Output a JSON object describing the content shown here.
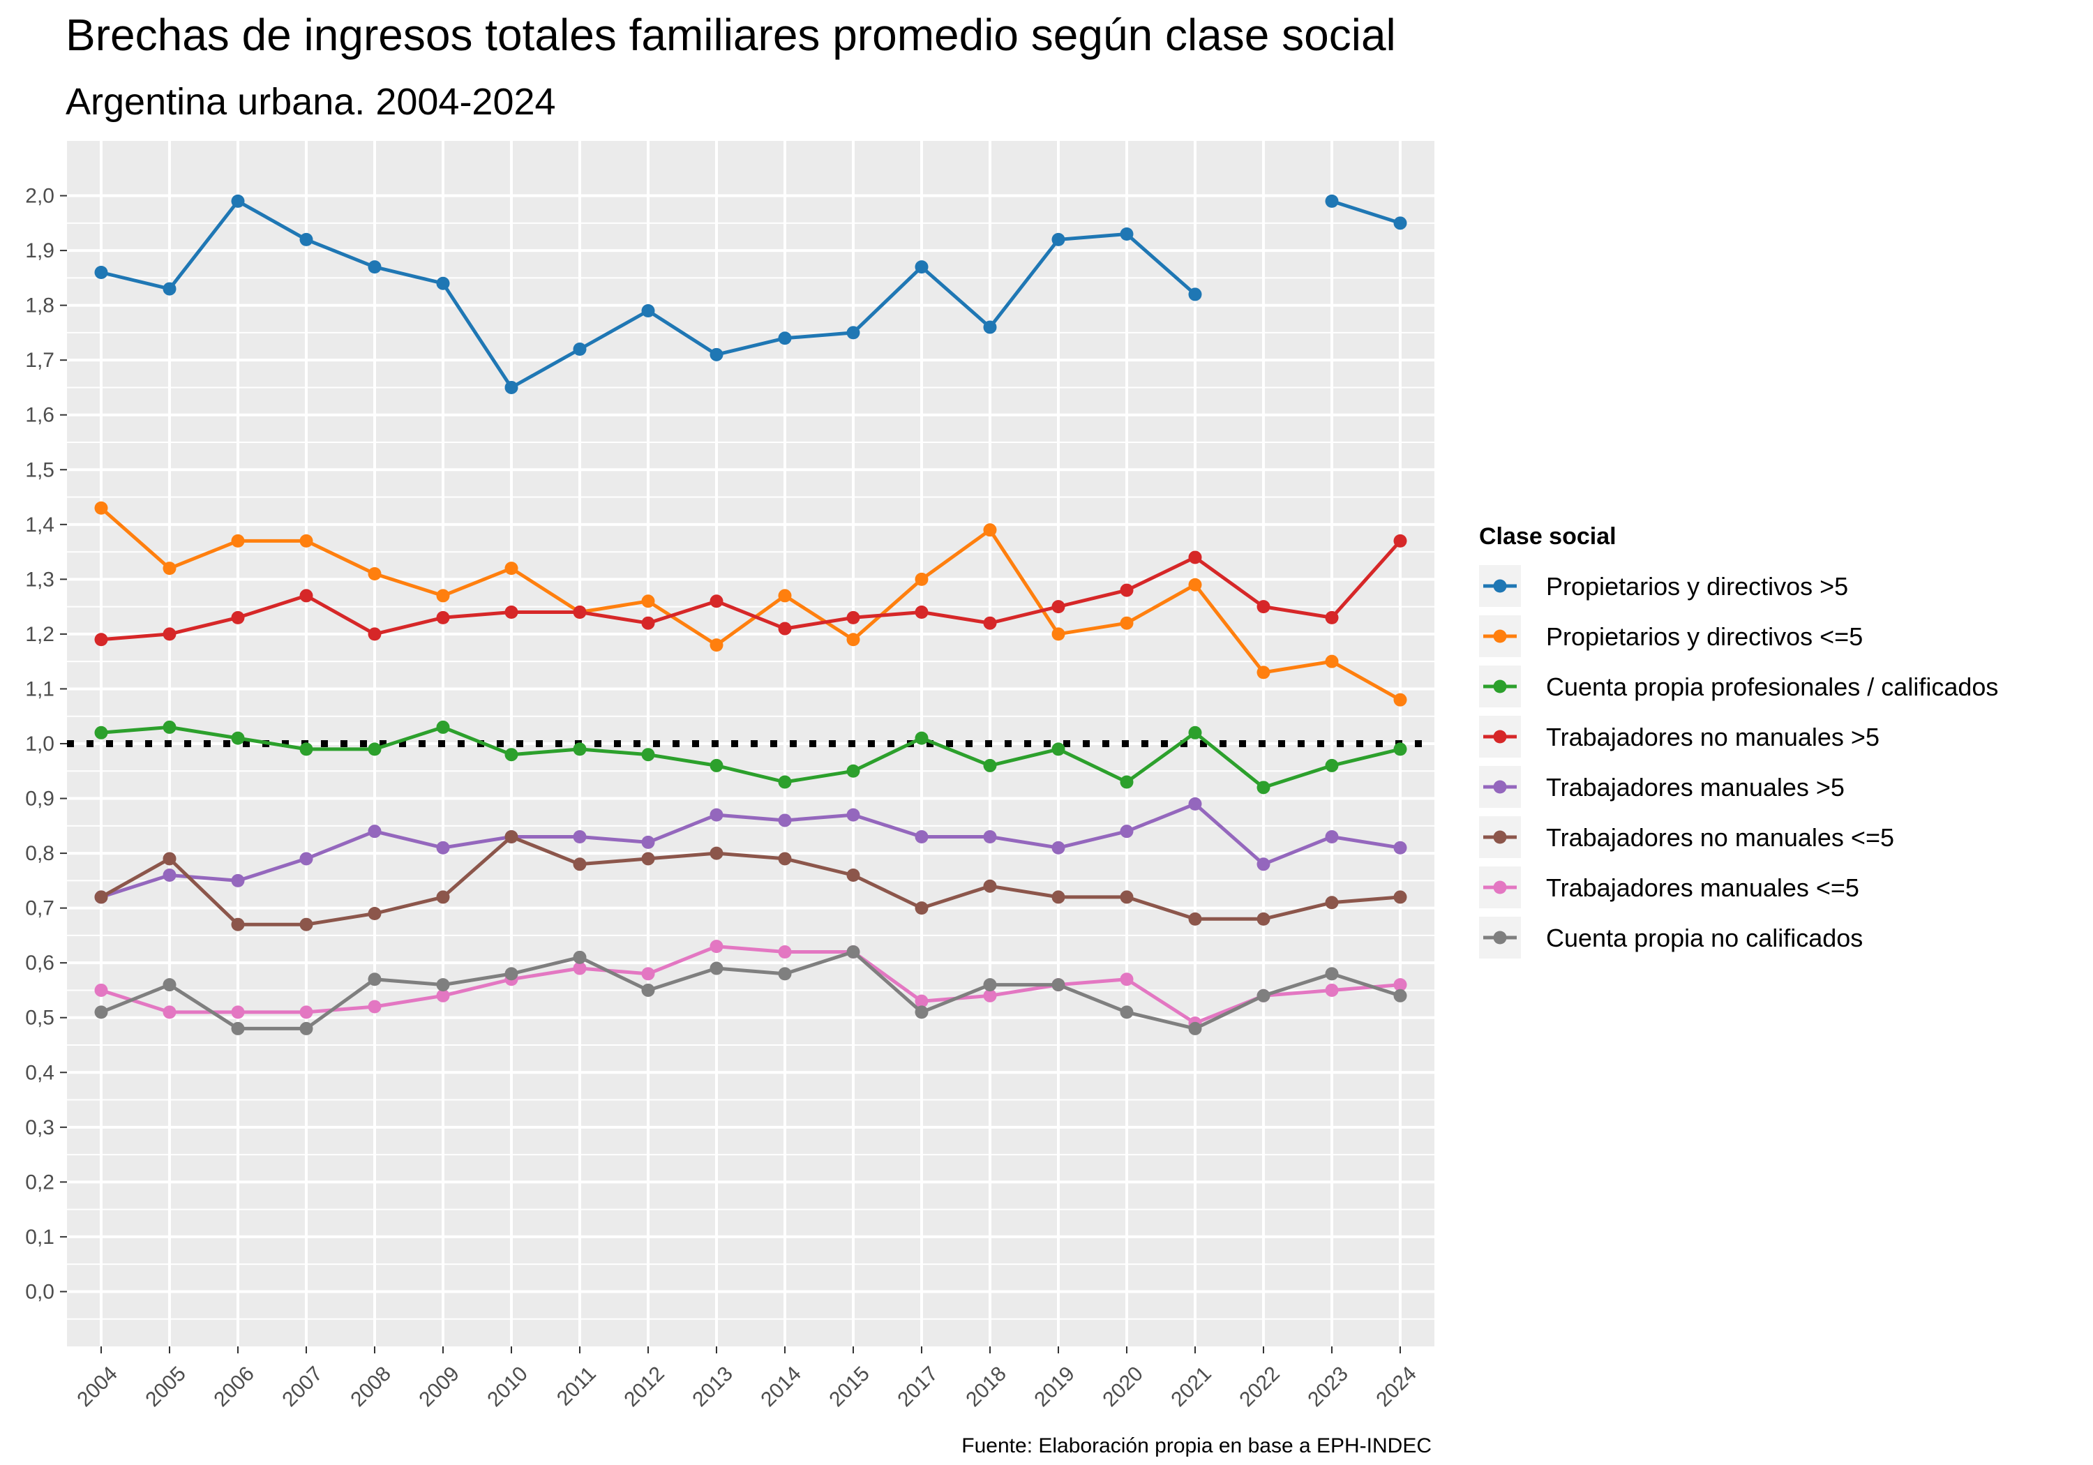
{
  "chart_data": {
    "type": "line",
    "title": "Brechas de ingresos totales familiares promedio según clase social",
    "subtitle": "Argentina urbana. 2004-2024",
    "caption": "Fuente: Elaboración propia en base a EPH-INDEC",
    "xlabel": "",
    "ylabel": "",
    "x": [
      "2004",
      "2005",
      "2006",
      "2007",
      "2008",
      "2009",
      "2010",
      "2011",
      "2012",
      "2013",
      "2014",
      "2015",
      "2017",
      "2018",
      "2019",
      "2020",
      "2021",
      "2022",
      "2023",
      "2024"
    ],
    "y_ticks": [
      "0,0",
      "0,1",
      "0,2",
      "0,3",
      "0,4",
      "0,5",
      "0,6",
      "0,7",
      "0,8",
      "0,9",
      "1,0",
      "1,1",
      "1,2",
      "1,3",
      "1,4",
      "1,5",
      "1,6",
      "1,7",
      "1,8",
      "1,9",
      "2,0"
    ],
    "ylim": [
      -0.1,
      2.1
    ],
    "reference_line": 1.0,
    "grid": true,
    "legend": {
      "title": "Clase social",
      "position": "right"
    },
    "series": [
      {
        "name": "Propietarios y directivos >5",
        "color": "#1f77b4",
        "values": [
          1.86,
          1.83,
          1.99,
          1.92,
          1.87,
          1.84,
          1.65,
          1.72,
          1.79,
          1.71,
          1.74,
          1.75,
          1.87,
          1.76,
          1.92,
          1.93,
          1.82,
          null,
          1.99,
          1.95
        ]
      },
      {
        "name": "Propietarios y directivos <=5",
        "color": "#ff7f0e",
        "values": [
          1.43,
          1.32,
          1.37,
          1.37,
          1.31,
          1.27,
          1.32,
          1.24,
          1.26,
          1.18,
          1.27,
          1.19,
          1.3,
          1.39,
          1.2,
          1.22,
          1.29,
          1.13,
          1.15,
          1.08
        ]
      },
      {
        "name": "Cuenta propia profesionales / calificados",
        "color": "#2ca02c",
        "values": [
          1.02,
          1.03,
          1.01,
          0.99,
          0.99,
          1.03,
          0.98,
          0.99,
          0.98,
          0.96,
          0.93,
          0.95,
          1.01,
          0.96,
          0.99,
          0.93,
          1.02,
          0.92,
          0.96,
          0.99
        ]
      },
      {
        "name": "Trabajadores no manuales >5",
        "color": "#d62728",
        "values": [
          1.19,
          1.2,
          1.23,
          1.27,
          1.2,
          1.23,
          1.24,
          1.24,
          1.22,
          1.26,
          1.21,
          1.23,
          1.24,
          1.22,
          1.25,
          1.28,
          1.34,
          1.25,
          1.23,
          1.37
        ]
      },
      {
        "name": "Trabajadores manuales >5",
        "color": "#9467bd",
        "values": [
          0.72,
          0.76,
          0.75,
          0.79,
          0.84,
          0.81,
          0.83,
          0.83,
          0.82,
          0.87,
          0.86,
          0.87,
          0.83,
          0.83,
          0.81,
          0.84,
          0.89,
          0.78,
          0.83,
          0.81
        ]
      },
      {
        "name": "Trabajadores no manuales <=5",
        "color": "#8c564b",
        "values": [
          0.72,
          0.79,
          0.67,
          0.67,
          0.69,
          0.72,
          0.83,
          0.78,
          0.79,
          0.8,
          0.79,
          0.76,
          0.7,
          0.74,
          0.72,
          0.72,
          0.68,
          0.68,
          0.71,
          0.72
        ]
      },
      {
        "name": "Trabajadores manuales <=5",
        "color": "#e377c2",
        "values": [
          0.55,
          0.51,
          0.51,
          0.51,
          0.52,
          0.54,
          0.57,
          0.59,
          0.58,
          0.63,
          0.62,
          0.62,
          0.53,
          0.54,
          0.56,
          0.57,
          0.49,
          0.54,
          0.55,
          0.56
        ]
      },
      {
        "name": "Cuenta propia no calificados",
        "color": "#7f7f7f",
        "values": [
          0.51,
          0.56,
          0.48,
          0.48,
          0.57,
          0.56,
          0.58,
          0.61,
          0.55,
          0.59,
          0.58,
          0.62,
          0.51,
          0.56,
          0.56,
          0.51,
          0.48,
          0.54,
          0.58,
          0.54
        ]
      }
    ]
  }
}
